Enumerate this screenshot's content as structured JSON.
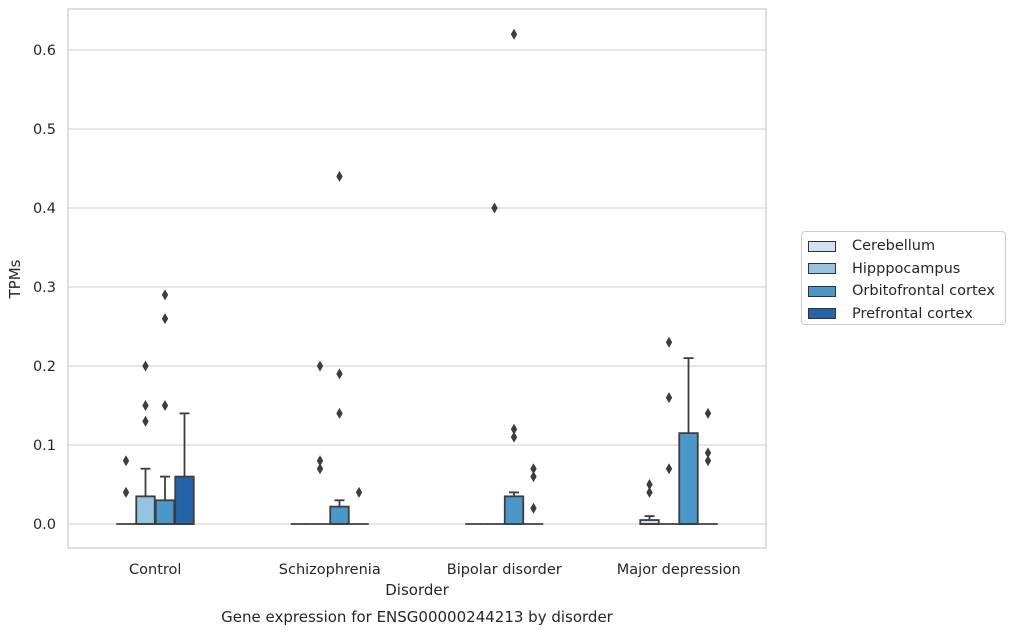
{
  "chart_data": {
    "type": "box",
    "title": "Gene expression for ENSG00000244213 by disorder",
    "xlabel": "Disorder",
    "ylabel": "TPMs",
    "ylim": [
      -0.03,
      0.65
    ],
    "yticks": [
      "0.0",
      "0.1",
      "0.2",
      "0.3",
      "0.4",
      "0.5",
      "0.6"
    ],
    "categories": [
      "Control",
      "Schizophrenia",
      "Bipolar disorder",
      "Major depression"
    ],
    "grid": true,
    "legend_position": "right",
    "series": [
      {
        "name": "Cerebellum",
        "color": "#d0e1f2",
        "boxes": [
          {
            "q1": 0,
            "median": 0,
            "q3": 0,
            "whisker_low": 0,
            "whisker_high": 0,
            "outliers": [
              0.04,
              0.08
            ]
          },
          {
            "q1": 0,
            "median": 0,
            "q3": 0,
            "whisker_low": 0,
            "whisker_high": 0,
            "outliers": []
          },
          {
            "q1": 0,
            "median": 0,
            "q3": 0,
            "whisker_low": 0,
            "whisker_high": 0,
            "outliers": []
          },
          {
            "q1": 0,
            "median": 0,
            "q3": 0.005,
            "whisker_low": 0,
            "whisker_high": 0.01,
            "outliers": [
              0.04,
              0.05
            ]
          }
        ]
      },
      {
        "name": "Hipppocampus",
        "color": "#94c4df",
        "boxes": [
          {
            "q1": 0,
            "median": 0,
            "q3": 0.035,
            "whisker_low": 0,
            "whisker_high": 0.07,
            "outliers": [
              0.13,
              0.15,
              0.2
            ]
          },
          {
            "q1": 0,
            "median": 0,
            "q3": 0,
            "whisker_low": 0,
            "whisker_high": 0,
            "outliers": [
              0.07,
              0.08,
              0.2
            ]
          },
          {
            "q1": 0,
            "median": 0,
            "q3": 0,
            "whisker_low": 0,
            "whisker_high": 0,
            "outliers": [
              0.4
            ]
          },
          {
            "q1": 0,
            "median": 0,
            "q3": 0,
            "whisker_low": 0,
            "whisker_high": 0,
            "outliers": [
              0.07,
              0.16,
              0.23
            ]
          }
        ]
      },
      {
        "name": "Orbitofrontal cortex",
        "color": "#4a98c9",
        "boxes": [
          {
            "q1": 0,
            "median": 0,
            "q3": 0.03,
            "whisker_low": 0,
            "whisker_high": 0.06,
            "outliers": [
              0.15,
              0.26,
              0.29
            ]
          },
          {
            "q1": 0,
            "median": 0,
            "q3": 0.022,
            "whisker_low": 0,
            "whisker_high": 0.03,
            "outliers": [
              0.14,
              0.19,
              0.44
            ]
          },
          {
            "q1": 0,
            "median": 0,
            "q3": 0.035,
            "whisker_low": 0,
            "whisker_high": 0.04,
            "outliers": [
              0.11,
              0.12,
              0.62
            ]
          },
          {
            "q1": 0,
            "median": 0,
            "q3": 0.115,
            "whisker_low": 0,
            "whisker_high": 0.21,
            "outliers": []
          }
        ]
      },
      {
        "name": "Prefrontal cortex",
        "color": "#2164ab",
        "boxes": [
          {
            "q1": 0,
            "median": 0,
            "q3": 0.06,
            "whisker_low": 0,
            "whisker_high": 0.14,
            "outliers": []
          },
          {
            "q1": 0,
            "median": 0,
            "q3": 0,
            "whisker_low": 0,
            "whisker_high": 0,
            "outliers": [
              0.04
            ]
          },
          {
            "q1": 0,
            "median": 0,
            "q3": 0,
            "whisker_low": 0,
            "whisker_high": 0,
            "outliers": [
              0.02,
              0.06,
              0.07
            ]
          },
          {
            "q1": 0,
            "median": 0,
            "q3": 0,
            "whisker_low": 0,
            "whisker_high": 0,
            "outliers": [
              0.08,
              0.09,
              0.14
            ]
          }
        ]
      }
    ]
  }
}
